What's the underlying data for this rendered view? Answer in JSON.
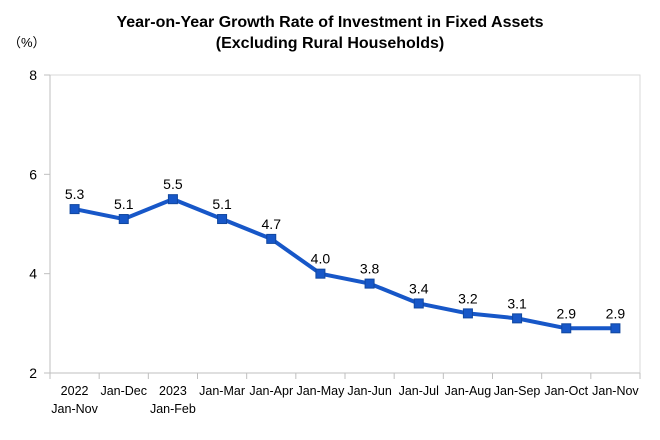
{
  "chart_data": {
    "type": "line",
    "title": "Year-on-Year Growth Rate of Investment in Fixed Assets",
    "subtitle": "(Excluding Rural Households)",
    "ylabel": "（%）",
    "ylim": [
      2,
      8
    ],
    "yticks": [
      8,
      6,
      4,
      2
    ],
    "grid": false,
    "legend_position": "none",
    "marker": "square",
    "categories": [
      [
        "2022",
        "Jan-Nov"
      ],
      [
        "Jan-Dec"
      ],
      [
        "2023",
        "Jan-Feb"
      ],
      [
        "Jan-Mar"
      ],
      [
        "Jan-Apr"
      ],
      [
        "Jan-May"
      ],
      [
        "Jan-Jun"
      ],
      [
        "Jan-Jul"
      ],
      [
        "Jan-Aug"
      ],
      [
        "Jan-Sep"
      ],
      [
        "Jan-Oct"
      ],
      [
        "Jan-Nov"
      ]
    ],
    "values": [
      5.3,
      5.1,
      5.5,
      5.1,
      4.7,
      4.0,
      3.8,
      3.4,
      3.2,
      3.1,
      2.9,
      2.9
    ],
    "data_labels": [
      "5.3",
      "5.1",
      "5.5",
      "5.1",
      "4.7",
      "4.0",
      "3.8",
      "3.4",
      "3.2",
      "3.1",
      "2.9",
      "2.9"
    ],
    "colors": {
      "line": "#1757C8",
      "marker_fill": "#1757C8",
      "marker_edge": "#11479F",
      "axis": "#BFBFBF",
      "plot_border": "#D9D9D9",
      "text": "#000000"
    }
  }
}
